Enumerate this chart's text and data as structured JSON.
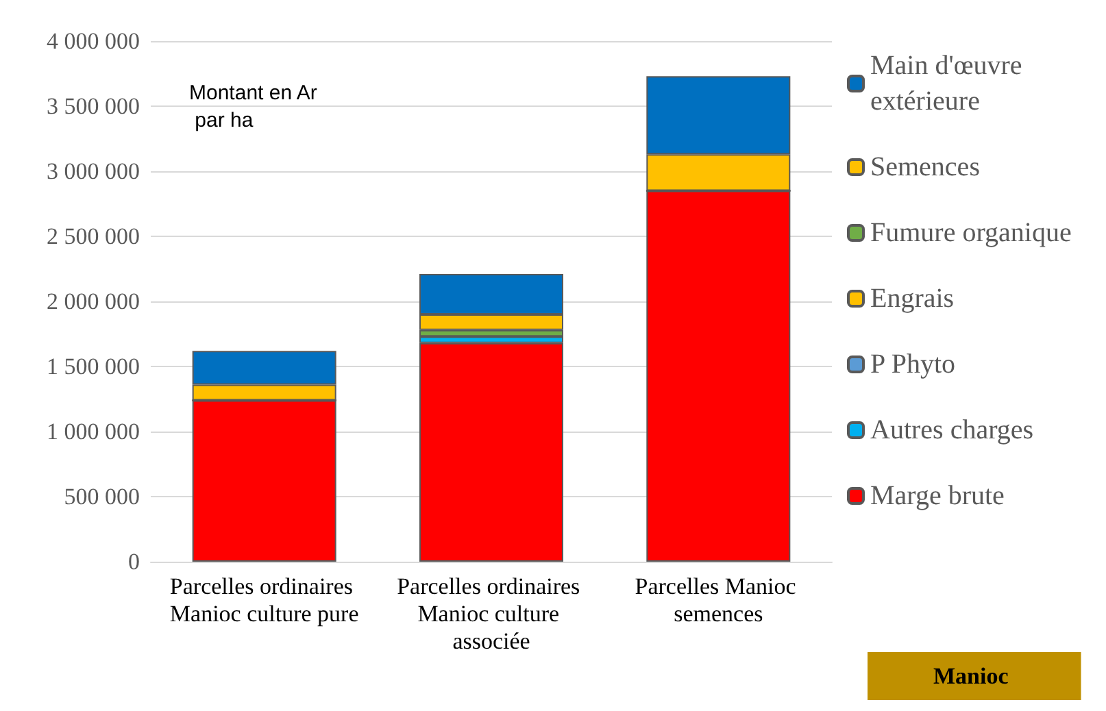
{
  "chart_data": {
    "type": "bar",
    "stacked": true,
    "title": "Manioc",
    "annotations": [
      "Montant en Ar par ha"
    ],
    "categories": [
      "Parcelles ordinaires Manioc culture pure",
      "Parcelles ordinaires Manioc culture associée",
      "Parcelles Manioc semences"
    ],
    "series": [
      {
        "name": "Marge brute",
        "color": "#ff0000",
        "values": [
          1240000,
          1680000,
          2850000
        ]
      },
      {
        "name": "Autres charges",
        "color": "#00b0f0",
        "values": [
          0,
          50000,
          0
        ]
      },
      {
        "name": "P Phyto",
        "color": "#5b9bd5",
        "values": [
          0,
          0,
          0
        ]
      },
      {
        "name": "Engrais",
        "color": "#ffc000",
        "values": [
          0,
          0,
          0
        ]
      },
      {
        "name": "Fumure organique",
        "color": "#70ad47",
        "values": [
          0,
          50000,
          0
        ]
      },
      {
        "name": "Semences",
        "color": "#ffc000",
        "values": [
          120000,
          120000,
          280000
        ]
      },
      {
        "name": "Main d'œuvre extérieure",
        "color": "#0070c0",
        "values": [
          260000,
          310000,
          600000
        ]
      }
    ],
    "ylim": [
      0,
      4000000
    ],
    "yticks": [
      0,
      500000,
      1000000,
      1500000,
      2000000,
      2500000,
      3000000,
      3500000,
      4000000
    ],
    "grid": "y",
    "legend": "right"
  }
}
